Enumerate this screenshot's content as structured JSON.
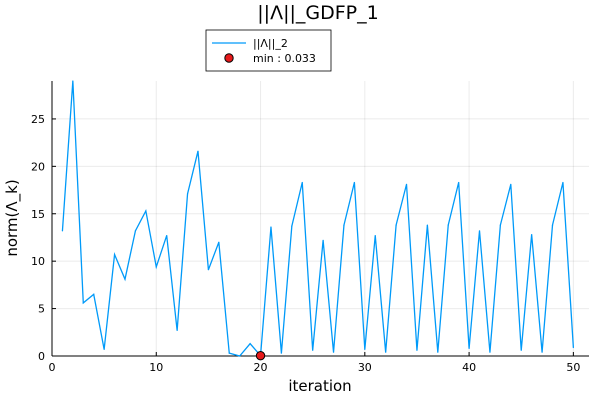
{
  "chart_data": {
    "type": "line",
    "title": "||Λ||_GDFP_1",
    "xlabel": "iteration",
    "ylabel": "norm(Λ_k)",
    "xlim": [
      0,
      51.5
    ],
    "ylim": [
      0,
      29
    ],
    "xticks": [
      0,
      10,
      20,
      30,
      40,
      50
    ],
    "yticks": [
      0,
      5,
      10,
      15,
      20,
      25
    ],
    "grid": true,
    "legend_position": "top-center",
    "series": [
      {
        "name": "||Λ||_2",
        "color": "#009af9",
        "x": [
          1,
          2,
          3,
          4,
          5,
          6,
          7,
          8,
          9,
          10,
          11,
          12,
          13,
          14,
          15,
          16,
          17,
          18,
          19,
          20,
          21,
          22,
          23,
          24,
          25,
          26,
          27,
          28,
          29,
          30,
          31,
          32,
          33,
          34,
          35,
          36,
          37,
          38,
          39,
          40,
          41,
          42,
          43,
          44,
          45,
          46,
          47,
          48,
          49,
          50
        ],
        "y": [
          13.2,
          29.0,
          5.6,
          6.5,
          0.7,
          10.7,
          8.1,
          13.2,
          15.3,
          9.4,
          12.7,
          2.7,
          17.1,
          21.6,
          9.1,
          12.0,
          0.3,
          0.0,
          1.3,
          0.033,
          13.6,
          0.3,
          13.7,
          18.3,
          0.6,
          12.2,
          0.4,
          13.8,
          18.3,
          0.7,
          12.7,
          0.4,
          13.8,
          18.1,
          0.6,
          13.8,
          0.4,
          13.8,
          18.3,
          0.8,
          13.2,
          0.4,
          13.8,
          18.1,
          0.6,
          12.8,
          0.4,
          13.8,
          18.3,
          0.9
        ]
      }
    ],
    "marker": {
      "name": "min : 0.033",
      "x": 20,
      "y": 0.033,
      "color": "#e6191b"
    }
  }
}
